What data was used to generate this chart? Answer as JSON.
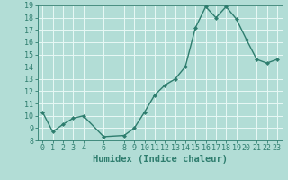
{
  "x": [
    0,
    1,
    2,
    3,
    4,
    6,
    8,
    9,
    10,
    11,
    12,
    13,
    14,
    15,
    16,
    17,
    18,
    19,
    20,
    21,
    22,
    23
  ],
  "y": [
    10.3,
    8.7,
    9.3,
    9.8,
    10.0,
    8.3,
    8.4,
    9.0,
    10.3,
    11.7,
    12.5,
    13.0,
    14.0,
    17.2,
    18.9,
    18.0,
    18.9,
    17.9,
    16.2,
    14.6,
    14.3,
    14.6
  ],
  "line_color": "#2e7d6e",
  "marker": "D",
  "marker_size": 2.0,
  "bg_color": "#b2ddd6",
  "grid_color": "#e8f8f5",
  "xlabel": "Humidex (Indice chaleur)",
  "ylim": [
    8,
    19
  ],
  "xlim": [
    -0.5,
    23.5
  ],
  "yticks": [
    8,
    9,
    10,
    11,
    12,
    13,
    14,
    15,
    16,
    17,
    18,
    19
  ],
  "xticks": [
    0,
    1,
    2,
    3,
    4,
    6,
    8,
    9,
    10,
    11,
    12,
    13,
    14,
    15,
    16,
    17,
    18,
    19,
    20,
    21,
    22,
    23
  ],
  "tick_label_fontsize": 6.0,
  "xlabel_fontsize": 7.5,
  "line_width": 1.0
}
